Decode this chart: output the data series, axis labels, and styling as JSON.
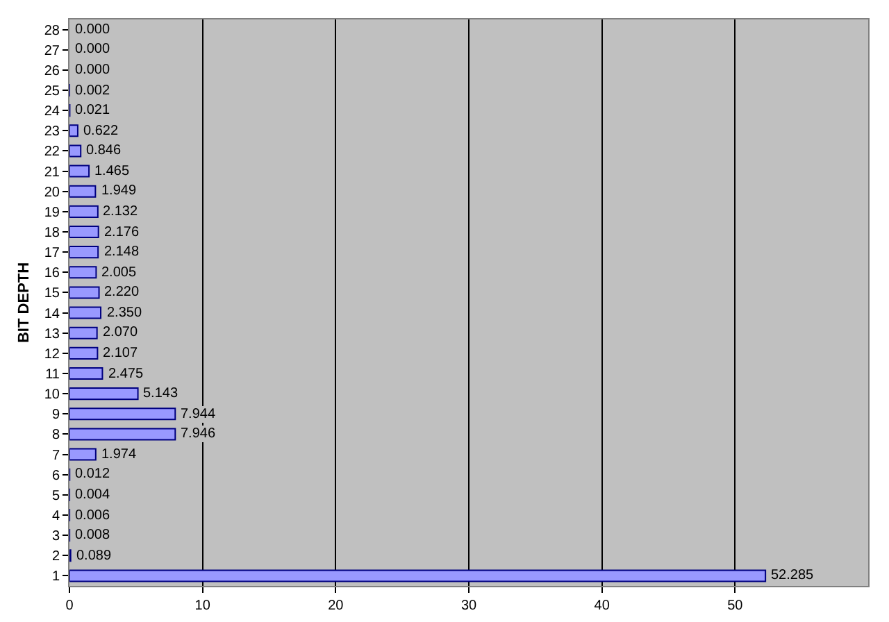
{
  "chart_data": {
    "type": "bar",
    "orientation": "horizontal",
    "ylabel": "BIT DEPTH",
    "categories": [
      "28",
      "27",
      "26",
      "25",
      "24",
      "23",
      "22",
      "21",
      "20",
      "19",
      "18",
      "17",
      "16",
      "15",
      "14",
      "13",
      "12",
      "11",
      "10",
      "9",
      "8",
      "7",
      "6",
      "5",
      "4",
      "3",
      "2",
      "1"
    ],
    "values": [
      0.0,
      0.0,
      0.0,
      0.002,
      0.021,
      0.622,
      0.846,
      1.465,
      1.949,
      2.132,
      2.176,
      2.148,
      2.005,
      2.22,
      2.35,
      2.07,
      2.107,
      2.475,
      5.143,
      7.944,
      7.946,
      1.974,
      0.012,
      0.004,
      0.006,
      0.008,
      0.089,
      52.285
    ],
    "value_labels": [
      "0.000",
      "0.000",
      "0.000",
      "0.002",
      "0.021",
      "0.622",
      "0.846",
      "1.465",
      "1.949",
      "2.132",
      "2.176",
      "2.148",
      "2.005",
      "2.220",
      "2.350",
      "2.070",
      "2.107",
      "2.475",
      "5.143",
      "7.944",
      "7.946",
      "1.974",
      "0.012",
      "0.004",
      "0.006",
      "0.008",
      "0.089",
      "52.285"
    ],
    "color": "#9999ff",
    "xlim": [
      0,
      60
    ],
    "xticks": [
      0,
      10,
      20,
      30,
      40,
      50
    ],
    "grid": "x"
  }
}
